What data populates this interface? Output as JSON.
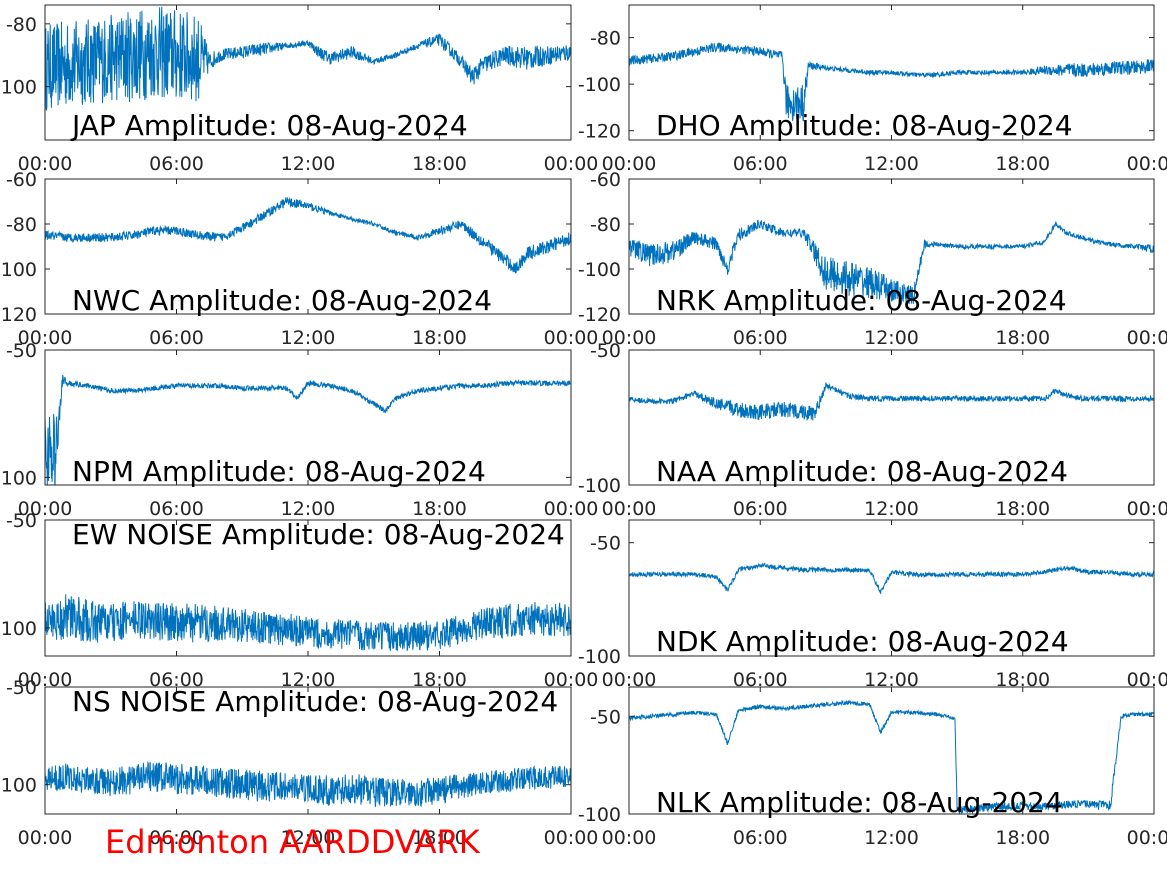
{
  "footer": {
    "label": "Edmonton AARDDVARK",
    "color": "#ff0000"
  },
  "line_color": "#0072bd",
  "chart_data": [
    {
      "type": "line",
      "title": "JAP Amplitude: 08-Aug-2024",
      "x_ticks": [
        "00:00",
        "06:00",
        "12:00",
        "18:00",
        "00:00"
      ],
      "y_ticks": [
        -80,
        -100
      ],
      "y_tick_labels": [
        "-80",
        "100"
      ],
      "ylim": [
        -117,
        -74
      ],
      "series": [
        {
          "x": [
            0,
            1,
            2,
            3,
            4,
            5,
            6,
            7,
            7.5,
            8,
            9,
            10,
            11,
            12,
            12.5,
            13,
            14,
            15,
            16,
            17,
            18,
            19,
            19.5,
            20,
            21,
            22,
            23,
            24
          ],
          "y": [
            -94,
            -93,
            -92,
            -91,
            -90,
            -89,
            -90,
            -91,
            -92,
            -90,
            -89,
            -88,
            -87,
            -86,
            -89,
            -91,
            -89,
            -92,
            -90,
            -87,
            -85,
            -92,
            -97,
            -93,
            -90,
            -91,
            -90,
            -89
          ],
          "noise": [
            14,
            14,
            14,
            14,
            15,
            15,
            15,
            14,
            3,
            2,
            2,
            2,
            1,
            1,
            2,
            2,
            2,
            1,
            1,
            1,
            2,
            2,
            3,
            3,
            3,
            4,
            3,
            3
          ]
        }
      ]
    },
    {
      "type": "line",
      "title": "DHO Amplitude: 08-Aug-2024",
      "x_ticks": [
        "00:00",
        "06:00",
        "12:00",
        "18:00",
        "00:00"
      ],
      "y_ticks": [
        -80,
        -100,
        -120
      ],
      "y_tick_labels": [
        "-80",
        "-100",
        "-120"
      ],
      "ylim": [
        -124,
        -66
      ],
      "series": [
        {
          "x": [
            0,
            1,
            2,
            3,
            4,
            5,
            6,
            7,
            7.2,
            8,
            8.2,
            9,
            10,
            11,
            12,
            13,
            14,
            15,
            16,
            17,
            18,
            19,
            20,
            21,
            22,
            23,
            24
          ],
          "y": [
            -90,
            -89,
            -88,
            -86,
            -84,
            -85,
            -86,
            -88,
            -108,
            -108,
            -92,
            -93,
            -94,
            -95,
            -95,
            -96,
            -96,
            -95,
            -95,
            -95,
            -95,
            -94,
            -94,
            -94,
            -93,
            -93,
            -92
          ],
          "noise": [
            2,
            2,
            2,
            2,
            2,
            2,
            2,
            2,
            8,
            8,
            2,
            1,
            1,
            1,
            1,
            1,
            1,
            1,
            1,
            1,
            1,
            2,
            3,
            3,
            3,
            3,
            3
          ]
        }
      ]
    },
    {
      "type": "line",
      "title": "NWC Amplitude: 08-Aug-2024",
      "x_ticks": [
        "00:00",
        "06:00",
        "12:00",
        "18:00",
        "00:00"
      ],
      "y_ticks": [
        -60,
        -80,
        -100,
        -120
      ],
      "y_tick_labels": [
        "-60",
        "-80",
        "100",
        "120"
      ],
      "ylim": [
        -120,
        -60
      ],
      "series": [
        {
          "x": [
            0,
            1,
            2,
            3,
            4,
            5,
            6,
            7,
            8,
            9,
            10,
            11,
            12,
            13,
            14,
            15,
            16,
            17,
            18,
            19,
            20,
            21,
            21.5,
            22,
            23,
            24
          ],
          "y": [
            -85,
            -86,
            -86,
            -86,
            -85,
            -83,
            -83,
            -85,
            -86,
            -82,
            -76,
            -70,
            -72,
            -75,
            -78,
            -80,
            -84,
            -86,
            -83,
            -80,
            -88,
            -96,
            -100,
            -93,
            -90,
            -86
          ],
          "noise": [
            2,
            2,
            2,
            2,
            2,
            2,
            2,
            2,
            2,
            2,
            2,
            2,
            2,
            1,
            1,
            1,
            1,
            1,
            2,
            2,
            3,
            3,
            3,
            3,
            3,
            3
          ]
        }
      ]
    },
    {
      "type": "line",
      "title": "NRK Amplitude: 08-Aug-2024",
      "x_ticks": [
        "00:00",
        "06:00",
        "12:00",
        "18:00",
        "00:00"
      ],
      "y_ticks": [
        -60,
        -80,
        -100,
        -120
      ],
      "y_tick_labels": [
        "-60",
        "-80",
        "-100",
        "-120"
      ],
      "ylim": [
        -120,
        -60
      ],
      "series": [
        {
          "x": [
            0,
            1,
            2,
            3,
            4,
            4.5,
            5,
            6,
            7,
            8,
            9,
            10,
            11,
            12,
            13,
            13.5,
            14,
            15,
            16,
            17,
            18,
            19,
            19.5,
            20,
            21,
            22,
            23,
            24
          ],
          "y": [
            -90,
            -94,
            -92,
            -86,
            -89,
            -100,
            -85,
            -80,
            -84,
            -84,
            -102,
            -104,
            -106,
            -110,
            -112,
            -89,
            -89,
            -90,
            -90,
            -90,
            -90,
            -88,
            -80,
            -84,
            -87,
            -89,
            -90,
            -91
          ],
          "noise": [
            4,
            5,
            5,
            3,
            3,
            3,
            3,
            2,
            2,
            2,
            8,
            8,
            7,
            6,
            4,
            2,
            1,
            1,
            1,
            1,
            1,
            1,
            1,
            1,
            1,
            1,
            1,
            2
          ]
        }
      ]
    },
    {
      "type": "line",
      "title": "NPM Amplitude: 08-Aug-2024",
      "x_ticks": [
        "00:00",
        "06:00",
        "12:00",
        "18:00",
        "00:00"
      ],
      "y_ticks": [
        -50,
        -100
      ],
      "y_tick_labels": [
        "-50",
        "100"
      ],
      "ylim": [
        -103,
        -50
      ],
      "series": [
        {
          "x": [
            0,
            0.5,
            0.8,
            1,
            2,
            3,
            4,
            5,
            6,
            7,
            8,
            9,
            10,
            11,
            11.5,
            12,
            13,
            14,
            15,
            15.5,
            16,
            17,
            18,
            19,
            20,
            21,
            22,
            23,
            24
          ],
          "y": [
            -90,
            -90,
            -62,
            -63,
            -64,
            -66,
            -66,
            -65,
            -64,
            -64,
            -64,
            -65,
            -65,
            -65,
            -69,
            -63,
            -64,
            -66,
            -71,
            -74,
            -69,
            -66,
            -65,
            -64,
            -64,
            -63,
            -63,
            -63,
            -63
          ],
          "noise": [
            15,
            15,
            3,
            1,
            1,
            1,
            1,
            1,
            1,
            1,
            1,
            1,
            1,
            1,
            1,
            1,
            1,
            1,
            1,
            1,
            1,
            1,
            1,
            1,
            1,
            1,
            1,
            1,
            1
          ]
        }
      ]
    },
    {
      "type": "line",
      "title": "NAA Amplitude: 08-Aug-2024",
      "x_ticks": [
        "00:00",
        "06:00",
        "12:00",
        "18:00",
        "00:00"
      ],
      "y_ticks": [
        -50,
        -100
      ],
      "y_tick_labels": [
        "-50",
        "-100"
      ],
      "ylim": [
        -100,
        -50
      ],
      "series": [
        {
          "x": [
            0,
            1,
            2,
            3,
            4,
            5,
            6,
            7,
            8,
            8.5,
            9,
            10,
            11,
            12,
            13,
            14,
            15,
            16,
            17,
            18,
            19,
            19.5,
            20,
            21,
            22,
            23,
            24
          ],
          "y": [
            -68,
            -69,
            -69,
            -66,
            -70,
            -72,
            -73,
            -72,
            -73,
            -74,
            -63,
            -67,
            -68,
            -68,
            -68,
            -68,
            -68,
            -68,
            -68,
            -68,
            -68,
            -65,
            -67,
            -68,
            -68,
            -68,
            -68
          ],
          "noise": [
            1,
            1,
            1,
            1,
            2,
            3,
            3,
            3,
            3,
            3,
            1,
            1,
            1,
            1,
            1,
            1,
            1,
            1,
            1,
            1,
            1,
            1,
            1,
            1,
            1,
            1,
            1
          ]
        }
      ]
    },
    {
      "type": "line",
      "title": "EW NOISE Amplitude: 08-Aug-2024",
      "x_ticks": [
        "00:00",
        "06:00",
        "12:00",
        "18:00",
        "00:00"
      ],
      "y_ticks": [
        -50,
        -100
      ],
      "y_tick_labels": [
        "-50",
        "100"
      ],
      "ylim": [
        -113,
        -50
      ],
      "series": [
        {
          "x": [
            0,
            1,
            2,
            3,
            4,
            5,
            6,
            7,
            8,
            9,
            10,
            11,
            12,
            13,
            14,
            15,
            16,
            17,
            18,
            19,
            20,
            21,
            22,
            23,
            24
          ],
          "y": [
            -97,
            -95,
            -97,
            -98,
            -96,
            -97,
            -97,
            -98,
            -98,
            -99,
            -100,
            -101,
            -102,
            -103,
            -103,
            -104,
            -104,
            -104,
            -103,
            -101,
            -98,
            -97,
            -96,
            -96,
            -96
          ],
          "noise": [
            9,
            11,
            10,
            9,
            9,
            9,
            9,
            9,
            8,
            8,
            8,
            8,
            7,
            7,
            7,
            7,
            7,
            7,
            7,
            7,
            7,
            8,
            8,
            8,
            8
          ]
        }
      ]
    },
    {
      "type": "line",
      "title": "NDK Amplitude: 08-Aug-2024",
      "x_ticks": [
        "00:00",
        "06:00",
        "12:00",
        "18:00",
        "00:00"
      ],
      "y_ticks": [
        -50,
        -100
      ],
      "y_tick_labels": [
        "-50",
        "-100"
      ],
      "ylim": [
        -100,
        -40
      ],
      "series": [
        {
          "x": [
            0,
            1,
            2,
            3,
            4,
            4.5,
            5,
            6,
            7,
            8,
            9,
            10,
            11,
            11.5,
            12,
            13,
            14,
            15,
            16,
            17,
            18,
            19,
            20,
            21,
            22,
            23,
            24
          ],
          "y": [
            -64,
            -64,
            -64,
            -64,
            -65,
            -71,
            -62,
            -60,
            -61,
            -62,
            -62,
            -62,
            -62,
            -72,
            -63,
            -64,
            -64,
            -64,
            -64,
            -64,
            -64,
            -63,
            -61,
            -63,
            -63,
            -64,
            -64
          ],
          "noise": [
            1,
            1,
            1,
            1,
            1,
            1,
            1,
            1,
            1,
            1,
            1,
            1,
            1,
            1,
            1,
            1,
            1,
            1,
            1,
            1,
            1,
            1,
            1,
            1,
            1,
            1,
            1
          ]
        }
      ]
    },
    {
      "type": "line",
      "title": "NS NOISE Amplitude: 08-Aug-2024",
      "x_ticks": [
        "00:00",
        "06:00",
        "12:00",
        "18:00",
        "00:00"
      ],
      "y_ticks": [
        -50,
        -100
      ],
      "y_tick_labels": [
        "-50",
        "100"
      ],
      "ylim": [
        -115,
        -50
      ],
      "series": [
        {
          "x": [
            0,
            1,
            2,
            3,
            4,
            5,
            6,
            7,
            8,
            9,
            10,
            11,
            12,
            13,
            14,
            15,
            16,
            17,
            18,
            19,
            20,
            21,
            22,
            23,
            24
          ],
          "y": [
            -97,
            -96,
            -98,
            -99,
            -97,
            -96,
            -97,
            -98,
            -99,
            -100,
            -101,
            -101,
            -102,
            -103,
            -102,
            -104,
            -104,
            -104,
            -103,
            -101,
            -99,
            -98,
            -97,
            -96,
            -96
          ],
          "noise": [
            6,
            7,
            7,
            7,
            8,
            8,
            8,
            8,
            8,
            8,
            8,
            7,
            7,
            8,
            8,
            8,
            7,
            7,
            7,
            7,
            6,
            6,
            6,
            6,
            6
          ]
        }
      ]
    },
    {
      "type": "line",
      "title": "NLK Amplitude: 08-Aug-2024",
      "x_ticks": [
        "00:00",
        "06:00",
        "12:00",
        "18:00",
        "00:00"
      ],
      "y_ticks": [
        -50,
        -100
      ],
      "y_tick_labels": [
        "-50",
        "-100"
      ],
      "ylim": [
        -100,
        -35
      ],
      "series": [
        {
          "x": [
            0,
            1,
            2,
            3,
            4,
            4.5,
            5,
            6,
            7,
            8,
            9,
            10,
            11,
            11.5,
            12,
            13,
            14,
            14.9,
            15,
            16,
            17,
            18,
            19,
            20,
            21,
            22,
            22.5,
            23,
            24
          ],
          "y": [
            -51,
            -50,
            -49,
            -48,
            -49,
            -64,
            -47,
            -45,
            -46,
            -45,
            -44,
            -43,
            -44,
            -58,
            -48,
            -48,
            -49,
            -51,
            -98,
            -97,
            -96,
            -96,
            -96,
            -95,
            -95,
            -96,
            -50,
            -49,
            -49
          ],
          "noise": [
            1,
            1,
            1,
            1,
            1,
            1,
            1,
            1,
            1,
            1,
            1,
            1,
            1,
            1,
            1,
            1,
            1,
            1,
            2,
            2,
            2,
            2,
            2,
            2,
            2,
            3,
            1,
            1,
            1
          ]
        }
      ]
    }
  ]
}
